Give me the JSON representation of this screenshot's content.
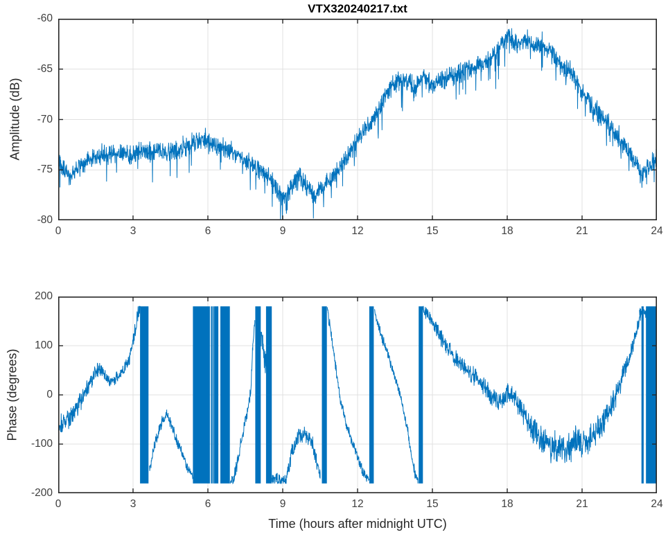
{
  "figure_title": "VTX320240217.txt",
  "colors": {
    "line": "#0072bd",
    "grid": "#e0e0e0",
    "axis": "#262626",
    "background": "#ffffff",
    "tick_label": "#3d3d3d"
  },
  "chart_data": [
    {
      "type": "line",
      "title": "VTX320240217.txt",
      "xlabel": "",
      "ylabel": "Amplitude (dB)",
      "xlim": [
        0,
        24
      ],
      "ylim": [
        -80,
        -60
      ],
      "xticks": [
        0,
        3,
        6,
        9,
        12,
        15,
        18,
        21,
        24
      ],
      "yticks": [
        -80,
        -75,
        -70,
        -65,
        -60
      ],
      "grid": true,
      "legend": null,
      "series": [
        {
          "name": "amplitude",
          "noise": 1.15,
          "spikes": true,
          "keypoints": [
            [
              0,
              -74.2
            ],
            [
              0.25,
              -75.0
            ],
            [
              0.5,
              -75.8
            ],
            [
              0.75,
              -74.9
            ],
            [
              1,
              -74.3
            ],
            [
              1.5,
              -73.8
            ],
            [
              2,
              -73.5
            ],
            [
              2.5,
              -73.4
            ],
            [
              3,
              -73.4
            ],
            [
              3.5,
              -73.2
            ],
            [
              4,
              -73.1
            ],
            [
              4.5,
              -73.2
            ],
            [
              5,
              -72.9
            ],
            [
              5.5,
              -72.2
            ],
            [
              5.8,
              -72.1
            ],
            [
              6.2,
              -72.5
            ],
            [
              6.7,
              -72.8
            ],
            [
              7.2,
              -73.4
            ],
            [
              7.8,
              -74.6
            ],
            [
              8.4,
              -75.6
            ],
            [
              9,
              -77.8
            ],
            [
              9.3,
              -76.9
            ],
            [
              9.6,
              -75.5
            ],
            [
              9.9,
              -76.4
            ],
            [
              10.25,
              -77.6
            ],
            [
              10.6,
              -76.7
            ],
            [
              11,
              -75.7
            ],
            [
              11.4,
              -74.4
            ],
            [
              11.8,
              -72.9
            ],
            [
              12.1,
              -71.4
            ],
            [
              12.5,
              -70.4
            ],
            [
              12.8,
              -69.4
            ],
            [
              13.1,
              -67.6
            ],
            [
              13.35,
              -66.6
            ],
            [
              13.6,
              -66.3
            ],
            [
              14,
              -66.1
            ],
            [
              14.3,
              -66.8
            ],
            [
              14.7,
              -65.9
            ],
            [
              15.05,
              -66.5
            ],
            [
              15.4,
              -66.1
            ],
            [
              16,
              -65.5
            ],
            [
              16.5,
              -65.0
            ],
            [
              17,
              -64.5
            ],
            [
              17.5,
              -63.6
            ],
            [
              17.8,
              -62.5
            ],
            [
              18.05,
              -61.7
            ],
            [
              18.3,
              -62.5
            ],
            [
              18.6,
              -62.2
            ],
            [
              19,
              -62.4
            ],
            [
              19.4,
              -62.7
            ],
            [
              19.8,
              -63.6
            ],
            [
              20.2,
              -64.8
            ],
            [
              20.6,
              -65.5
            ],
            [
              21,
              -67.2
            ],
            [
              21.5,
              -68.9
            ],
            [
              22,
              -70.3
            ],
            [
              22.5,
              -71.9
            ],
            [
              23,
              -73.9
            ],
            [
              23.4,
              -75.4
            ],
            [
              23.7,
              -74.6
            ],
            [
              24,
              -73.7
            ]
          ]
        }
      ]
    },
    {
      "type": "line",
      "title": "",
      "xlabel": "Time (hours after midnight UTC)",
      "ylabel": "Phase (degrees)",
      "xlim": [
        0,
        24
      ],
      "ylim": [
        -200,
        200
      ],
      "xticks": [
        0,
        3,
        6,
        9,
        12,
        15,
        18,
        21,
        24
      ],
      "yticks": [
        -200,
        -100,
        0,
        100,
        200
      ],
      "grid": true,
      "legend": null,
      "wrap_range": [
        -180,
        180
      ],
      "wrap_bands": [
        [
          3.28,
          3.62
        ],
        [
          5.4,
          6.08
        ],
        [
          6.12,
          6.14
        ],
        [
          6.18,
          6.2
        ],
        [
          6.24,
          6.42
        ],
        [
          6.5,
          6.88
        ],
        [
          7.9,
          8.12
        ],
        [
          8.33,
          8.56
        ],
        [
          10.57,
          10.77
        ],
        [
          12.47,
          12.65
        ],
        [
          14.45,
          14.62
        ],
        [
          23.38,
          23.47
        ],
        [
          23.56,
          23.98
        ]
      ],
      "series_segments": [
        {
          "noise_profile": [
            [
              0,
              27
            ],
            [
              1.5,
              20
            ],
            [
              2.3,
              15
            ],
            [
              3.28,
              20
            ]
          ],
          "points": [
            [
              0,
              -68
            ],
            [
              0.4,
              -50
            ],
            [
              0.8,
              -22
            ],
            [
              1.2,
              18
            ],
            [
              1.5,
              45
            ],
            [
              1.65,
              55
            ],
            [
              1.85,
              42
            ],
            [
              2.05,
              28
            ],
            [
              2.3,
              32
            ],
            [
              2.6,
              48
            ],
            [
              2.85,
              72
            ],
            [
              3.05,
              120
            ],
            [
              3.2,
              170
            ],
            [
              3.28,
              178
            ]
          ]
        },
        {
          "noise": 13,
          "points": [
            [
              3.66,
              -152
            ],
            [
              3.9,
              -95
            ],
            [
              4.15,
              -55
            ],
            [
              4.35,
              -40
            ],
            [
              4.55,
              -62
            ],
            [
              4.75,
              -92
            ],
            [
              5.0,
              -122
            ],
            [
              5.2,
              -150
            ],
            [
              5.4,
              -168
            ]
          ]
        },
        {
          "noise": 16,
          "points": [
            [
              6.9,
              -176
            ],
            [
              7.05,
              -170
            ],
            [
              7.3,
              -105
            ],
            [
              7.55,
              -45
            ],
            [
              7.72,
              10
            ],
            [
              7.8,
              95
            ],
            [
              7.88,
              152
            ]
          ]
        },
        {
          "noise": 32,
          "points": [
            [
              8.13,
              125
            ],
            [
              8.24,
              85
            ],
            [
              8.33,
              58
            ]
          ]
        },
        {
          "noise": 20,
          "points": [
            [
              8.57,
              -172
            ],
            [
              9.0,
              -174
            ],
            [
              9.15,
              -166
            ],
            [
              9.35,
              -120
            ],
            [
              9.6,
              -88
            ],
            [
              9.85,
              -80
            ],
            [
              10.05,
              -88
            ],
            [
              10.2,
              -100
            ],
            [
              10.35,
              -130
            ],
            [
              10.5,
              -170
            ]
          ]
        },
        {
          "noise": 13,
          "points": [
            [
              10.79,
              172
            ],
            [
              10.95,
              120
            ],
            [
              11.1,
              65
            ],
            [
              11.28,
              0
            ],
            [
              11.5,
              -50
            ],
            [
              11.75,
              -90
            ],
            [
              12.0,
              -125
            ],
            [
              12.2,
              -155
            ],
            [
              12.35,
              -170
            ],
            [
              12.46,
              -172
            ]
          ]
        },
        {
          "noise": 13,
          "points": [
            [
              12.68,
              172
            ],
            [
              12.9,
              130
            ],
            [
              13.15,
              90
            ],
            [
              13.45,
              45
            ],
            [
              13.75,
              -10
            ],
            [
              14.0,
              -70
            ],
            [
              14.15,
              -120
            ],
            [
              14.3,
              -160
            ],
            [
              14.42,
              -170
            ]
          ]
        },
        {
          "noise_profile": [
            [
              14.62,
              16
            ],
            [
              16,
              22
            ],
            [
              18,
              24
            ],
            [
              19.3,
              32
            ],
            [
              20,
              40
            ],
            [
              21,
              38
            ],
            [
              21.8,
              30
            ],
            [
              22.6,
              26
            ],
            [
              23.4,
              15
            ]
          ],
          "points": [
            [
              14.62,
              176
            ],
            [
              14.9,
              158
            ],
            [
              15.2,
              128
            ],
            [
              15.55,
              100
            ],
            [
              16,
              68
            ],
            [
              16.5,
              44
            ],
            [
              17,
              20
            ],
            [
              17.45,
              -8
            ],
            [
              17.75,
              -14
            ],
            [
              18.05,
              4
            ],
            [
              18.3,
              -8
            ],
            [
              18.6,
              -35
            ],
            [
              19,
              -68
            ],
            [
              19.4,
              -92
            ],
            [
              19.8,
              -104
            ],
            [
              20.2,
              -110
            ],
            [
              20.5,
              -112
            ],
            [
              20.75,
              -98
            ],
            [
              21,
              -102
            ],
            [
              21.3,
              -90
            ],
            [
              21.6,
              -74
            ],
            [
              21.95,
              -48
            ],
            [
              22.25,
              -15
            ],
            [
              22.55,
              25
            ],
            [
              22.85,
              70
            ],
            [
              23.1,
              112
            ],
            [
              23.3,
              155
            ],
            [
              23.4,
              170
            ]
          ]
        },
        {
          "noise": 12,
          "points": [
            [
              23.3,
              168
            ],
            [
              23.7,
              167
            ],
            [
              24,
              166
            ]
          ]
        }
      ]
    }
  ]
}
